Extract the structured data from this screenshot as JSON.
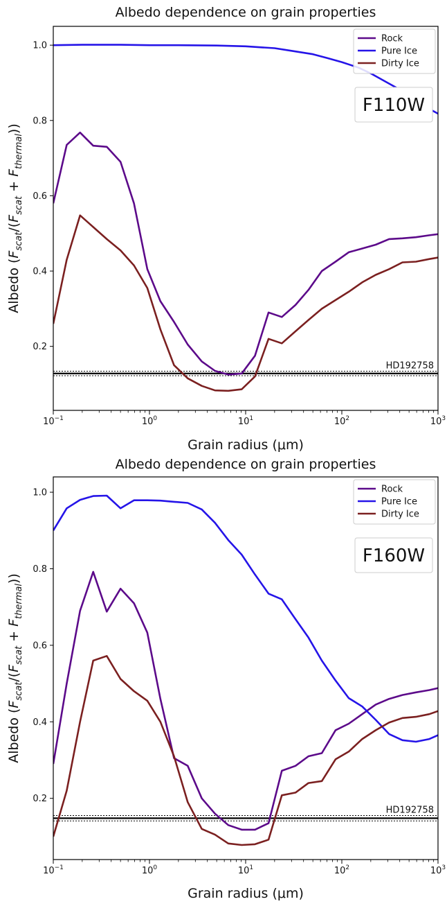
{
  "chart_data": [
    {
      "type": "line",
      "title": "Albedo dependence on grain properties",
      "xlabel": "Grain radius (μm)",
      "ylabel": "Albedo (F_scat/(F_scat + F_thermal))",
      "xscale": "log",
      "xlim": [
        0.1,
        1000
      ],
      "ylim": [
        0.03,
        1.05
      ],
      "xticks": [
        {
          "value": 0.1,
          "base": "10",
          "exp": "−1"
        },
        {
          "value": 1,
          "base": "10",
          "exp": "0"
        },
        {
          "value": 10,
          "base": "10",
          "exp": "1"
        },
        {
          "value": 100,
          "base": "10",
          "exp": "2"
        },
        {
          "value": 1000,
          "base": "10",
          "exp": "3"
        }
      ],
      "yticks": [
        {
          "value": 0.2,
          "label": "0.2"
        },
        {
          "value": 0.4,
          "label": "0.4"
        },
        {
          "value": 0.6,
          "label": "0.6"
        },
        {
          "value": 0.8,
          "label": "0.8"
        },
        {
          "value": 1.0,
          "label": "1.0"
        }
      ],
      "grid": false,
      "legend": "top-right",
      "filter_label": "F110W",
      "reference": {
        "label": "HD192758",
        "value": 0.128,
        "band": [
          0.122,
          0.134
        ]
      },
      "series": [
        {
          "name": "Rock",
          "color": "#5c0a8a",
          "x": [
            0.1,
            0.138,
            0.19,
            0.26,
            0.36,
            0.5,
            0.69,
            0.95,
            1.3,
            1.8,
            2.5,
            3.5,
            4.8,
            6.6,
            9.1,
            12.5,
            17.3,
            23.8,
            33,
            45,
            62,
            86,
            118,
            163,
            225,
            310,
            427,
            590,
            813,
            1000
          ],
          "y": [
            0.58,
            0.735,
            0.768,
            0.733,
            0.73,
            0.69,
            0.58,
            0.405,
            0.32,
            0.265,
            0.205,
            0.16,
            0.135,
            0.125,
            0.128,
            0.175,
            0.29,
            0.278,
            0.31,
            0.35,
            0.4,
            0.425,
            0.45,
            0.46,
            0.47,
            0.485,
            0.487,
            0.49,
            0.495,
            0.498
          ]
        },
        {
          "name": "Pure Ice",
          "color": "#2514e8",
          "x": [
            0.1,
            0.2,
            0.5,
            1,
            2,
            5,
            10,
            15,
            20,
            30,
            50,
            70,
            100,
            150,
            200,
            300,
            400,
            500,
            700,
            1000
          ],
          "y": [
            1.0,
            1.001,
            1.001,
            1.0,
            1.0,
            0.999,
            0.997,
            0.994,
            0.992,
            0.985,
            0.976,
            0.966,
            0.955,
            0.94,
            0.925,
            0.9,
            0.882,
            0.865,
            0.84,
            0.818
          ]
        },
        {
          "name": "Dirty Ice",
          "color": "#7b2020",
          "x": [
            0.1,
            0.138,
            0.19,
            0.26,
            0.36,
            0.5,
            0.69,
            0.95,
            1.3,
            1.8,
            2.5,
            3.5,
            4.8,
            6.6,
            9.1,
            12.5,
            17.3,
            23.8,
            33,
            45,
            62,
            86,
            118,
            163,
            225,
            310,
            427,
            590,
            813,
            1000
          ],
          "y": [
            0.26,
            0.43,
            0.548,
            0.517,
            0.485,
            0.455,
            0.415,
            0.355,
            0.245,
            0.15,
            0.115,
            0.095,
            0.083,
            0.082,
            0.086,
            0.12,
            0.22,
            0.208,
            0.24,
            0.27,
            0.3,
            0.323,
            0.345,
            0.37,
            0.39,
            0.405,
            0.423,
            0.425,
            0.432,
            0.436
          ]
        }
      ]
    },
    {
      "type": "line",
      "title": "Albedo dependence on grain properties",
      "xlabel": "Grain radius (μm)",
      "ylabel": "Albedo (F_scat/(F_scat + F_thermal))",
      "xscale": "log",
      "xlim": [
        0.1,
        1000
      ],
      "ylim": [
        0.04,
        1.04
      ],
      "xticks": [
        {
          "value": 0.1,
          "base": "10",
          "exp": "−1"
        },
        {
          "value": 1,
          "base": "10",
          "exp": "0"
        },
        {
          "value": 10,
          "base": "10",
          "exp": "1"
        },
        {
          "value": 100,
          "base": "10",
          "exp": "2"
        },
        {
          "value": 1000,
          "base": "10",
          "exp": "3"
        }
      ],
      "yticks": [
        {
          "value": 0.2,
          "label": "0.2"
        },
        {
          "value": 0.4,
          "label": "0.4"
        },
        {
          "value": 0.6,
          "label": "0.6"
        },
        {
          "value": 0.8,
          "label": "0.8"
        },
        {
          "value": 1.0,
          "label": "1.0"
        }
      ],
      "grid": false,
      "legend": "top-right",
      "filter_label": "F160W",
      "reference": {
        "label": "HD192758",
        "value": 0.148,
        "band": [
          0.141,
          0.155
        ]
      },
      "series": [
        {
          "name": "Rock",
          "color": "#5c0a8a",
          "x": [
            0.1,
            0.138,
            0.19,
            0.26,
            0.36,
            0.5,
            0.69,
            0.95,
            1.3,
            1.8,
            2.5,
            3.5,
            4.8,
            6.6,
            9.1,
            12.5,
            17.3,
            23.8,
            33,
            45,
            62,
            86,
            118,
            163,
            225,
            310,
            427,
            590,
            813,
            1000
          ],
          "y": [
            0.29,
            0.5,
            0.69,
            0.792,
            0.688,
            0.748,
            0.71,
            0.633,
            0.46,
            0.305,
            0.285,
            0.2,
            0.16,
            0.13,
            0.118,
            0.118,
            0.135,
            0.272,
            0.285,
            0.31,
            0.318,
            0.378,
            0.395,
            0.42,
            0.445,
            0.46,
            0.47,
            0.477,
            0.483,
            0.488
          ]
        },
        {
          "name": "Pure Ice",
          "color": "#2514e8",
          "x": [
            0.1,
            0.138,
            0.19,
            0.26,
            0.36,
            0.5,
            0.69,
            0.95,
            1.3,
            1.8,
            2.5,
            3.5,
            4.8,
            6.6,
            9.1,
            12.5,
            17.3,
            23.8,
            33,
            45,
            62,
            86,
            118,
            163,
            225,
            310,
            427,
            590,
            813,
            1000
          ],
          "y": [
            0.9,
            0.958,
            0.98,
            0.99,
            0.991,
            0.958,
            0.979,
            0.979,
            0.978,
            0.975,
            0.972,
            0.955,
            0.92,
            0.875,
            0.837,
            0.785,
            0.735,
            0.72,
            0.668,
            0.62,
            0.56,
            0.508,
            0.462,
            0.44,
            0.405,
            0.368,
            0.352,
            0.348,
            0.355,
            0.365
          ]
        },
        {
          "name": "Dirty Ice",
          "color": "#7b2020",
          "x": [
            0.1,
            0.138,
            0.19,
            0.26,
            0.36,
            0.5,
            0.69,
            0.95,
            1.3,
            1.8,
            2.5,
            3.5,
            4.8,
            6.6,
            9.1,
            12.5,
            17.3,
            23.8,
            33,
            45,
            62,
            86,
            118,
            163,
            225,
            310,
            427,
            590,
            813,
            1000
          ],
          "y": [
            0.1,
            0.22,
            0.4,
            0.56,
            0.572,
            0.512,
            0.48,
            0.455,
            0.4,
            0.31,
            0.19,
            0.12,
            0.105,
            0.082,
            0.078,
            0.08,
            0.092,
            0.208,
            0.215,
            0.24,
            0.245,
            0.302,
            0.322,
            0.355,
            0.378,
            0.398,
            0.41,
            0.413,
            0.42,
            0.428
          ]
        }
      ]
    }
  ]
}
